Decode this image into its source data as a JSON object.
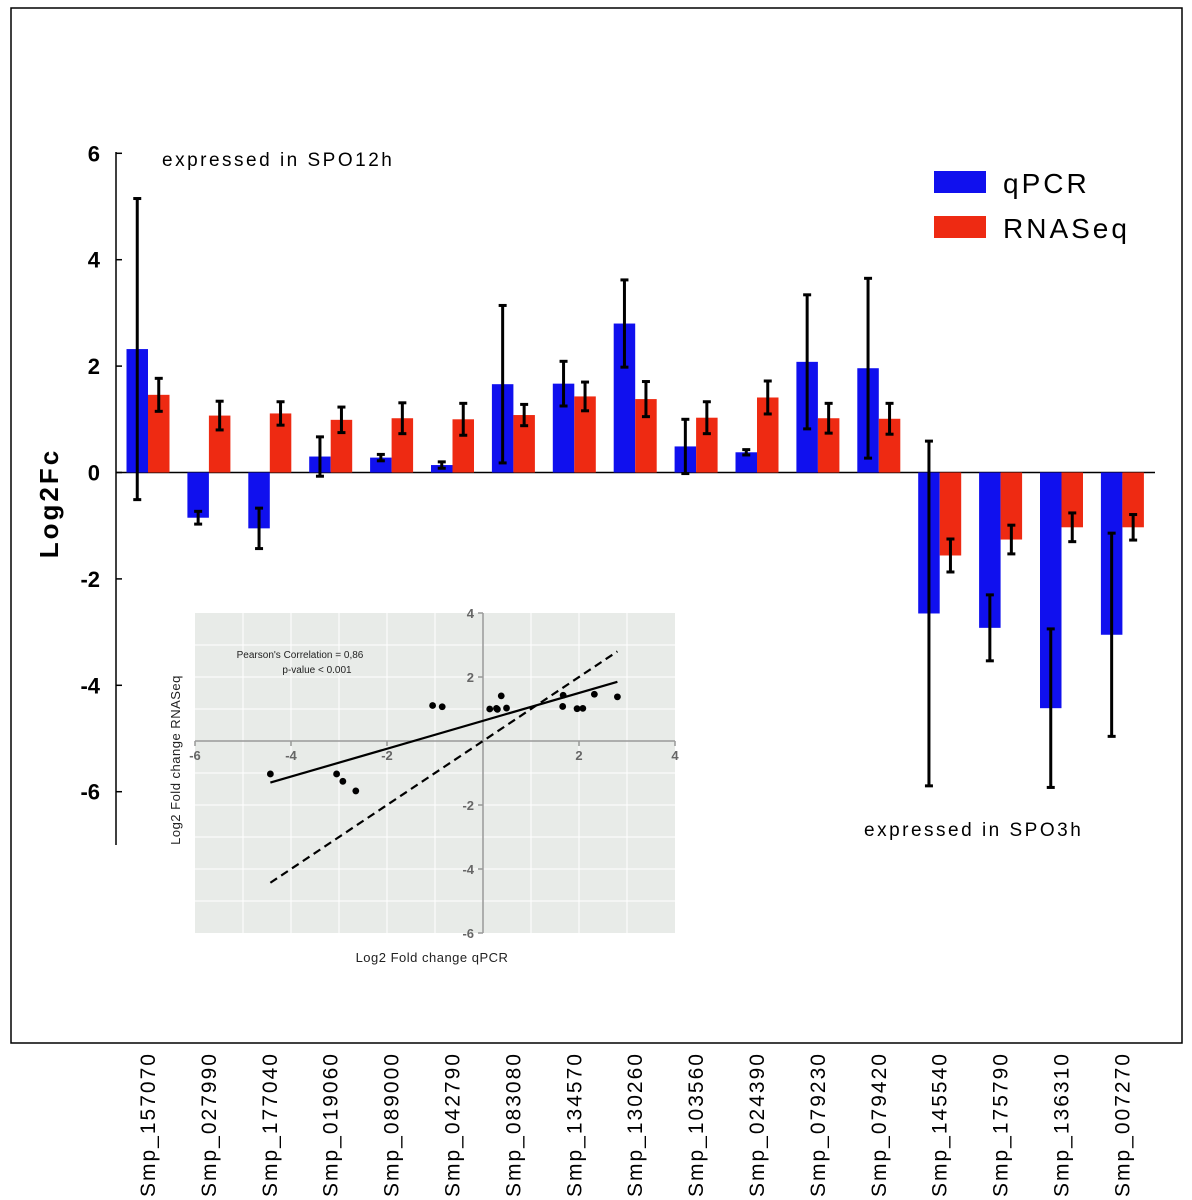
{
  "chart_data": [
    {
      "type": "bar",
      "title": "",
      "xlabel": "",
      "ylabel": "Log2Fc",
      "ylim": [
        -7,
        6
      ],
      "yticks": [
        6,
        4,
        2,
        0,
        -2,
        -4,
        -6
      ],
      "ytick_labels": [
        "6",
        "4",
        "2",
        "0",
        "-2",
        "-4",
        "-6"
      ],
      "legend_position": "top-right",
      "grid": false,
      "annotations": [
        "expressed in SPO12h",
        "expressed in SPO3h"
      ],
      "categories": [
        "Smp_157070",
        "Smp_027990",
        "Smp_177040",
        "Smp_019060",
        "Smp_089000",
        "Smp_042790",
        "Smp_083080",
        "Smp_134570",
        "Smp_130260",
        "Smp_103560",
        "Smp_024390",
        "Smp_079230",
        "Smp_079420",
        "Smp_145540",
        "Smp_175790",
        "Smp_136310",
        "Smp_007270"
      ],
      "series": [
        {
          "name": "qPCR",
          "color": "#1010ee",
          "values": [
            2.32,
            -0.85,
            -1.05,
            0.3,
            0.28,
            0.14,
            1.66,
            1.67,
            2.8,
            0.49,
            0.38,
            2.08,
            1.96,
            -2.65,
            -2.92,
            -4.43,
            -3.05
          ],
          "errors": [
            2.83,
            0.12,
            0.38,
            0.37,
            0.06,
            0.06,
            1.48,
            0.42,
            0.82,
            0.51,
            0.05,
            1.26,
            1.69,
            3.24,
            0.62,
            1.49,
            1.91
          ]
        },
        {
          "name": "RNASeq",
          "color": "#ee2a12",
          "values": [
            1.46,
            1.07,
            1.11,
            0.99,
            1.02,
            1.0,
            1.08,
            1.43,
            1.38,
            1.03,
            1.41,
            1.02,
            1.01,
            -1.56,
            -1.26,
            -1.03,
            -1.03
          ],
          "errors": [
            0.31,
            0.27,
            0.22,
            0.24,
            0.29,
            0.3,
            0.2,
            0.27,
            0.33,
            0.3,
            0.31,
            0.28,
            0.29,
            0.31,
            0.27,
            0.27,
            0.24
          ]
        }
      ]
    },
    {
      "type": "scatter",
      "title": "",
      "xlabel": "Log2 Fold change qPCR",
      "ylabel": "Log2 Fold change RNASeq",
      "xlim": [
        -6,
        4
      ],
      "ylim": [
        -6,
        4
      ],
      "xticks": [
        -6,
        -4,
        -2,
        2,
        4
      ],
      "xtick_labels": [
        "-6",
        "-4",
        "-2",
        "2",
        "4"
      ],
      "yticks": [
        4,
        2,
        -2,
        -4,
        -6
      ],
      "ytick_labels": [
        "4",
        "2",
        "-2",
        "-4",
        "-6"
      ],
      "stats": [
        "Pearson's Correlation = 0,86",
        "p-value < 0.001"
      ],
      "background": "#e8ebe8",
      "points": {
        "x": [
          2.32,
          -0.85,
          -1.05,
          0.3,
          0.28,
          0.14,
          1.66,
          1.67,
          2.8,
          0.49,
          0.38,
          2.08,
          1.96,
          -2.65,
          -2.92,
          -4.43,
          -3.05
        ],
        "y": [
          1.46,
          1.07,
          1.11,
          0.99,
          1.02,
          1.0,
          1.08,
          1.43,
          1.38,
          1.03,
          1.41,
          1.02,
          1.01,
          -1.56,
          -1.26,
          -1.03,
          -1.03
        ]
      },
      "lines": [
        {
          "style": "solid",
          "x": [
            -4.43,
            2.8
          ],
          "y": [
            -1.3,
            1.85
          ]
        },
        {
          "style": "dashed",
          "x": [
            -4.43,
            2.8
          ],
          "y": [
            -4.43,
            2.8
          ]
        }
      ]
    }
  ]
}
